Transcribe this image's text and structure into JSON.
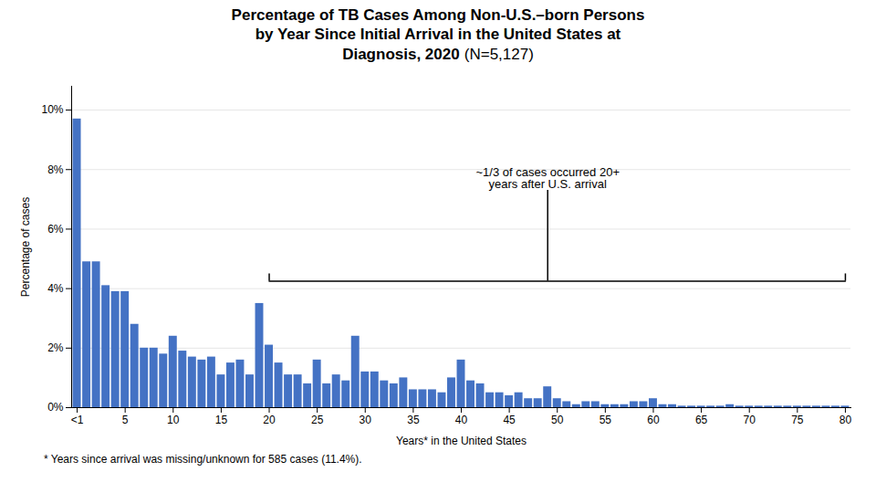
{
  "chart_data": {
    "type": "bar",
    "title": "Percentage of TB Cases Among Non-U.S.–born Persons\nby Year Since Initial Arrival in the United States at\nDiagnosis, 2020",
    "subtitle": "(N=5,127)",
    "xlabel": "Years* in the United States",
    "ylabel": "Percentage of cases",
    "caption": "* Years since arrival was missing/unknown for 585 cases (11.4%).",
    "color": "#4472C4",
    "categories": [
      "<1",
      null,
      null,
      null,
      null,
      "5",
      null,
      null,
      null,
      null,
      "10",
      null,
      null,
      null,
      null,
      "15",
      null,
      null,
      null,
      null,
      "20",
      null,
      null,
      null,
      null,
      "25",
      null,
      null,
      null,
      null,
      "30",
      null,
      null,
      null,
      null,
      "35",
      null,
      null,
      null,
      null,
      "40",
      null,
      null,
      null,
      null,
      "45",
      null,
      null,
      null,
      null,
      "50",
      null,
      null,
      null,
      null,
      "55",
      null,
      null,
      null,
      null,
      "60",
      null,
      null,
      null,
      null,
      "65",
      null,
      null,
      null,
      null,
      "70",
      null,
      null,
      null,
      null,
      "75",
      null,
      null,
      null,
      null,
      "80"
    ],
    "values": [
      9.7,
      4.9,
      4.9,
      4.1,
      3.9,
      3.9,
      2.8,
      2.0,
      2.0,
      1.8,
      2.4,
      1.9,
      1.7,
      1.6,
      1.7,
      1.1,
      1.5,
      1.6,
      1.1,
      3.5,
      2.1,
      1.5,
      1.1,
      1.1,
      0.8,
      1.6,
      0.8,
      1.1,
      0.9,
      2.4,
      1.2,
      1.2,
      0.9,
      0.8,
      1.0,
      0.6,
      0.6,
      0.6,
      0.5,
      1.0,
      1.6,
      0.9,
      0.8,
      0.5,
      0.5,
      0.4,
      0.5,
      0.3,
      0.3,
      0.7,
      0.3,
      0.2,
      0.1,
      0.2,
      0.2,
      0.1,
      0.1,
      0.1,
      0.2,
      0.2,
      0.3,
      0.1,
      0.1,
      0.05,
      0.05,
      0.05,
      0.05,
      0.05,
      0.1,
      0.05,
      0.05,
      0.05,
      0.05,
      0.05,
      0.05,
      0.05,
      0.05,
      0.05,
      0.05,
      0.05,
      0.05
    ],
    "ylim": [
      0,
      10.8
    ],
    "yticks": [
      {
        "value": 0,
        "label": "0%"
      },
      {
        "value": 2,
        "label": "2%"
      },
      {
        "value": 4,
        "label": "4%"
      },
      {
        "value": 6,
        "label": "6%"
      },
      {
        "value": 8,
        "label": "8%"
      },
      {
        "value": 10,
        "label": "10%"
      }
    ],
    "grid": true,
    "annotations": [
      {
        "text": "~1/3 of cases occurred 20+\nyears after U.S. arrival",
        "x": 49,
        "y": 7.3,
        "bracket": {
          "x": [
            20,
            80
          ],
          "y": 4.25
        }
      }
    ]
  }
}
